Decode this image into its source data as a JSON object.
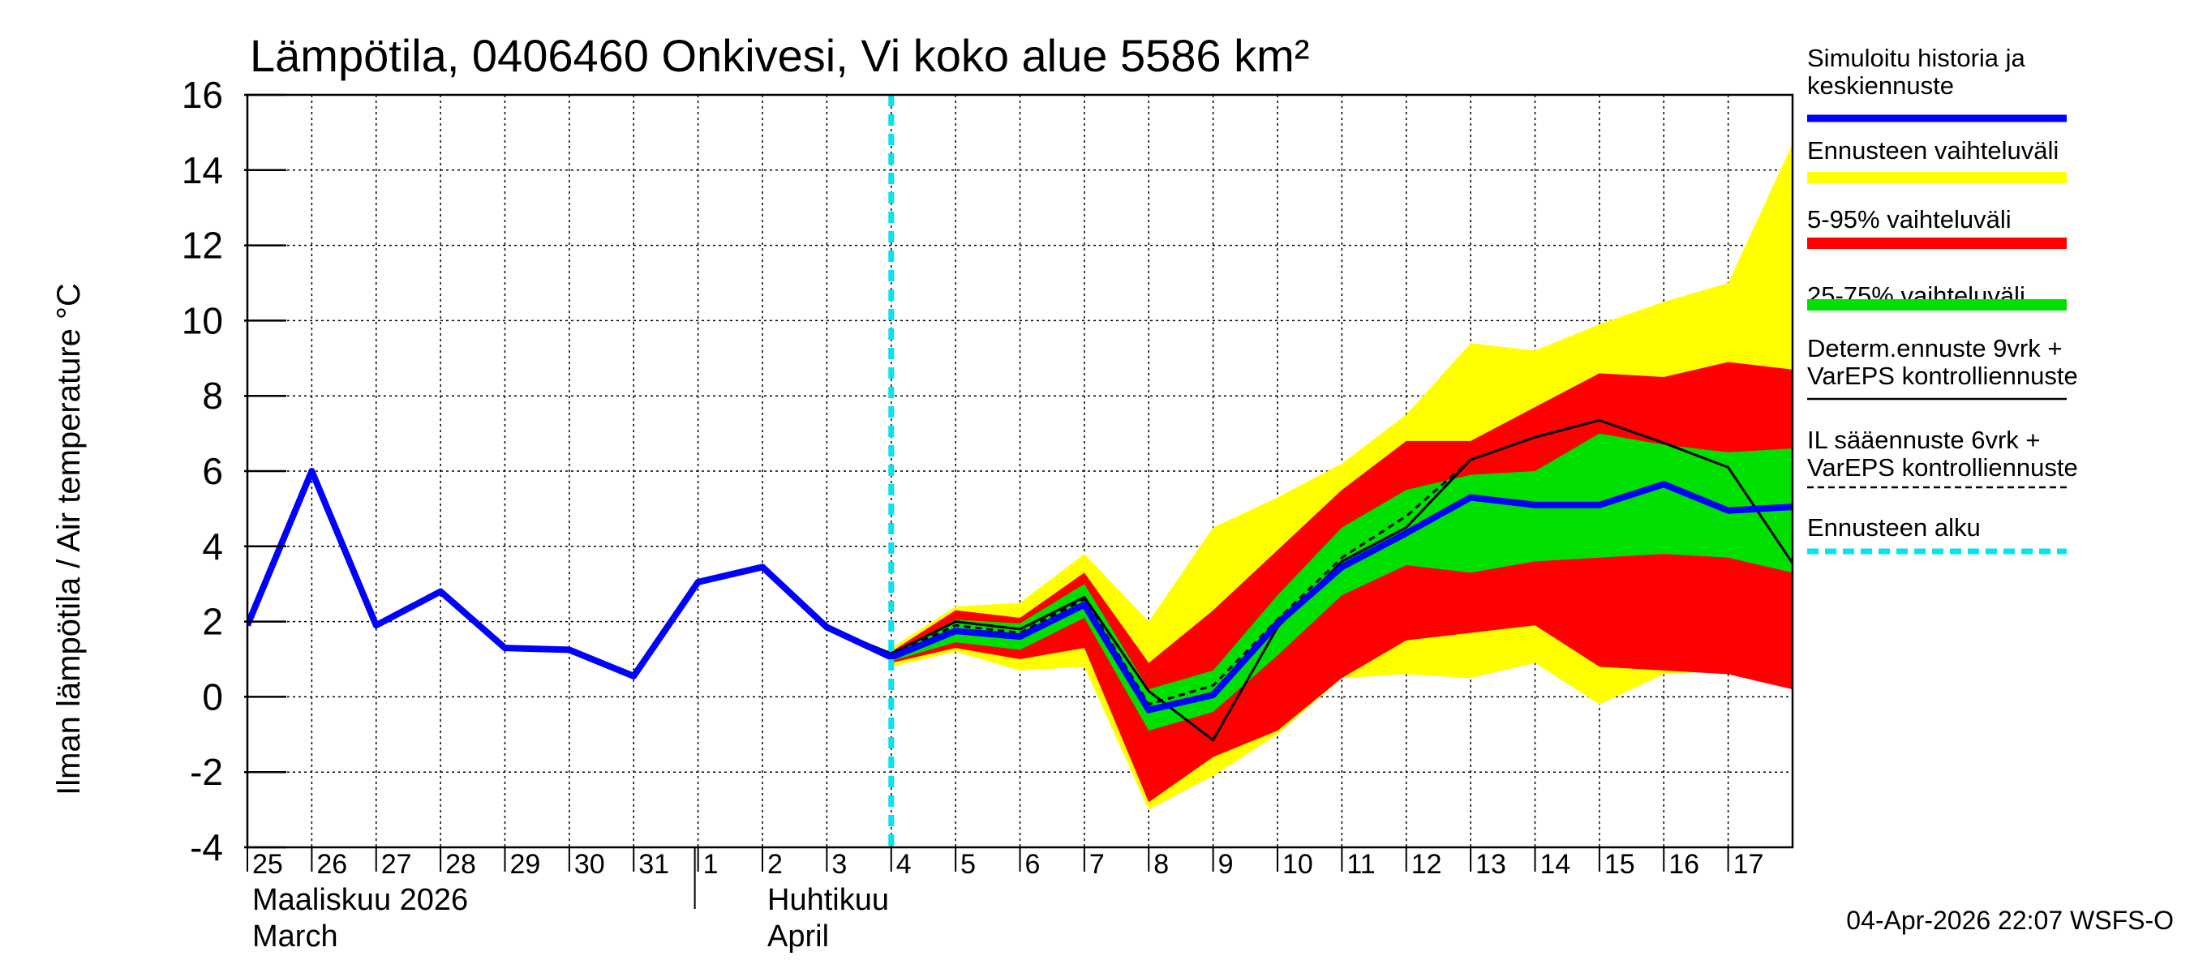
{
  "chart_data": {
    "type": "line",
    "title": "Lämpötila, 0406460 Onkivesi, Vi koko alue 5586 km²",
    "ylabel": "Ilman lämpötila / Air temperature   °C",
    "ylim": [
      -4,
      16
    ],
    "yticks": [
      -4,
      -2,
      0,
      2,
      4,
      6,
      8,
      10,
      12,
      14,
      16
    ],
    "x_range": [
      0,
      24.0
    ],
    "day_labels": [
      {
        "x": 0.0,
        "label": "25"
      },
      {
        "x": 1.0,
        "label": "26"
      },
      {
        "x": 2.0,
        "label": "27"
      },
      {
        "x": 3.0,
        "label": "28"
      },
      {
        "x": 4.0,
        "label": "29"
      },
      {
        "x": 5.0,
        "label": "30"
      },
      {
        "x": 6.0,
        "label": "31"
      },
      {
        "x": 7.0,
        "label": "1"
      },
      {
        "x": 8.0,
        "label": "2"
      },
      {
        "x": 9.0,
        "label": "3"
      },
      {
        "x": 10.0,
        "label": "4"
      },
      {
        "x": 11.0,
        "label": "5"
      },
      {
        "x": 12.0,
        "label": "6"
      },
      {
        "x": 13.0,
        "label": "7"
      },
      {
        "x": 14.0,
        "label": "8"
      },
      {
        "x": 15.0,
        "label": "9"
      },
      {
        "x": 16.0,
        "label": "10"
      },
      {
        "x": 17.0,
        "label": "11"
      },
      {
        "x": 18.0,
        "label": "12"
      },
      {
        "x": 19.0,
        "label": "13"
      },
      {
        "x": 20.0,
        "label": "14"
      },
      {
        "x": 21.0,
        "label": "15"
      },
      {
        "x": 22.0,
        "label": "16"
      },
      {
        "x": 23.0,
        "label": "17"
      }
    ],
    "month_labels": [
      {
        "x": 0.0,
        "line1": "Maaliskuu 2026",
        "line2": "March"
      },
      {
        "x": 8.0,
        "line1": "Huhtikuu",
        "line2": "April"
      }
    ],
    "month_divider_x": 7.0,
    "forecast_start_x": 10.0,
    "series": [
      {
        "name": "Simuloitu historia ja keskiennuste",
        "x": [
          0,
          1,
          2,
          3,
          4,
          5,
          6,
          7,
          8,
          9,
          10,
          11,
          12,
          13,
          14,
          15,
          16,
          17,
          18,
          19,
          20,
          21,
          22,
          23,
          24
        ],
        "values": [
          1.9,
          6.0,
          1.9,
          2.8,
          1.3,
          1.25,
          0.55,
          3.05,
          3.45,
          1.85,
          1.05,
          1.75,
          1.6,
          2.45,
          -0.35,
          0.05,
          1.95,
          3.45,
          4.35,
          5.3,
          5.1,
          5.1,
          5.65,
          4.95,
          5.05
        ]
      },
      {
        "name": "Determ.ennuste 9vrk + VarEPS kontrolliennuste",
        "x": [
          7,
          8,
          9,
          10,
          11,
          12,
          13,
          14,
          15,
          16,
          17,
          18,
          19,
          20,
          21,
          22,
          23,
          24
        ],
        "values": [
          3.05,
          3.45,
          1.85,
          1.15,
          2.0,
          1.8,
          2.65,
          0.15,
          -1.15,
          1.85,
          3.6,
          4.5,
          6.3,
          6.9,
          7.35,
          6.75,
          6.1,
          3.55
        ]
      },
      {
        "name": "IL sääennuste 6vrk + VarEPS kontrolliennuste",
        "x": [
          10,
          11,
          12,
          13,
          14,
          15,
          16,
          17,
          18,
          19
        ],
        "values": [
          1.1,
          1.9,
          1.7,
          2.6,
          -0.2,
          0.3,
          2.05,
          3.7,
          4.8,
          6.3
        ]
      }
    ],
    "bands": [
      {
        "name": "Ennusteen vaihteluväli",
        "x": [
          10,
          11,
          12,
          13,
          14,
          15,
          16,
          17,
          18,
          19,
          20,
          21,
          22,
          23,
          24
        ],
        "lower": [
          0.8,
          1.2,
          0.7,
          0.8,
          -3.0,
          -2.1,
          -1.0,
          0.5,
          0.6,
          0.5,
          0.9,
          -0.2,
          0.6,
          0.7,
          0.2
        ],
        "upper": [
          1.3,
          2.4,
          2.5,
          3.8,
          2.0,
          4.5,
          5.3,
          6.2,
          7.5,
          9.4,
          9.2,
          9.9,
          10.5,
          11.0,
          14.7
        ]
      },
      {
        "name": "5-95% vaihteluväli",
        "x": [
          10,
          11,
          12,
          13,
          14,
          15,
          16,
          17,
          18,
          19,
          20,
          21,
          22,
          23,
          24
        ],
        "lower": [
          0.9,
          1.3,
          1.0,
          1.3,
          -2.8,
          -1.6,
          -0.9,
          0.5,
          1.5,
          1.7,
          1.9,
          0.8,
          0.7,
          0.6,
          0.2
        ],
        "upper": [
          1.2,
          2.3,
          2.1,
          3.3,
          0.9,
          2.3,
          3.9,
          5.5,
          6.8,
          6.8,
          7.7,
          8.6,
          8.5,
          8.9,
          8.7
        ]
      },
      {
        "name": "25-75% vaihteluväli",
        "x": [
          10,
          11,
          12,
          13,
          14,
          15,
          16,
          17,
          18,
          19,
          20,
          21,
          22,
          23,
          24
        ],
        "lower": [
          0.95,
          1.45,
          1.25,
          2.1,
          -0.9,
          -0.4,
          1.1,
          2.7,
          3.5,
          3.3,
          3.6,
          3.7,
          3.8,
          3.7,
          3.3
        ],
        "upper": [
          1.15,
          2.05,
          1.95,
          3.0,
          0.2,
          0.7,
          2.7,
          4.5,
          5.5,
          5.9,
          6.0,
          7.0,
          6.7,
          6.5,
          6.6
        ]
      }
    ],
    "colors": {
      "mean": "#0000ff",
      "yellow": "#ffff00",
      "red": "#ff0000",
      "green": "#00e000",
      "determ": "#000000",
      "il": "#000000",
      "forecast_start": "#00e5ee",
      "grid": "#000000"
    },
    "legend": [
      {
        "lines": [
          "Simuloitu historia ja",
          "keskiennuste"
        ],
        "style": "mean"
      },
      {
        "lines": [
          "Ennusteen vaihteluväli"
        ],
        "style": "yellow"
      },
      {
        "lines": [
          "5-95% vaihteluväli"
        ],
        "style": "red"
      },
      {
        "lines": [
          "25-75% vaihteluväli"
        ],
        "style": "green"
      },
      {
        "lines": [
          "Determ.ennuste 9vrk +",
          "VarEPS kontrolliennuste"
        ],
        "style": "determ"
      },
      {
        "lines": [
          "IL sääennuste 6vrk  +",
          "  VarEPS kontrolliennuste"
        ],
        "style": "il"
      },
      {
        "lines": [
          "Ennusteen alku"
        ],
        "style": "forecast_start"
      }
    ],
    "footer": "04-Apr-2026 22:07 WSFS-O"
  }
}
